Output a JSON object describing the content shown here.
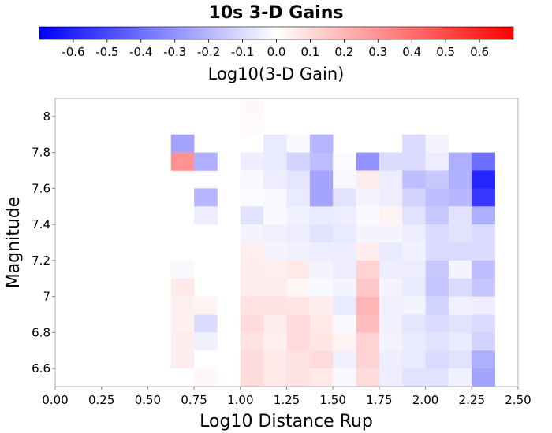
{
  "chart_data": {
    "type": "heatmap",
    "title": "10s 3-D Gains",
    "xlabel": "Log10 Distance Rup",
    "ylabel": "Magnitude",
    "xlim": [
      0.0,
      2.5
    ],
    "ylim": [
      6.5,
      8.1
    ],
    "xticks": [
      "0.00",
      "0.25",
      "0.50",
      "0.75",
      "1.00",
      "1.25",
      "1.50",
      "1.75",
      "2.00",
      "2.25",
      "2.50"
    ],
    "yticks": [
      "6.6",
      "6.8",
      "7",
      "7.2",
      "7.4",
      "7.6",
      "7.8",
      "8"
    ],
    "colorbar": {
      "label": "Log10(3-D Gain)",
      "min": -0.7,
      "max": 0.7,
      "ticks": [
        "-0.6",
        "-0.5",
        "-0.4",
        "-0.3",
        "-0.2",
        "-0.1",
        "0.0",
        "0.1",
        "0.2",
        "0.3",
        "0.4",
        "0.5",
        "0.6"
      ],
      "low_color": "#0000ff",
      "mid_color": "#ffffff",
      "high_color": "#ff0000"
    },
    "grid": false,
    "x_bins": [
      0.6875,
      0.8125,
      0.9375,
      1.0625,
      1.1875,
      1.3125,
      1.4375,
      1.5625,
      1.6875,
      1.8125,
      1.9375,
      2.0625,
      2.1875,
      2.3125
    ],
    "y_bins": [
      8.05,
      7.95,
      7.85,
      7.75,
      7.65,
      7.55,
      7.45,
      7.35,
      7.25,
      7.15,
      7.05,
      6.95,
      6.85,
      6.75,
      6.65,
      6.55
    ],
    "values": [
      [
        null,
        null,
        null,
        0.02,
        null,
        null,
        null,
        null,
        null,
        null,
        null,
        null,
        null,
        null
      ],
      [
        null,
        null,
        null,
        0.01,
        null,
        null,
        null,
        null,
        null,
        null,
        null,
        null,
        null,
        null
      ],
      [
        -0.25,
        null,
        null,
        0.0,
        -0.06,
        -0.02,
        -0.2,
        null,
        null,
        null,
        -0.1,
        -0.03,
        null,
        null
      ],
      [
        0.3,
        -0.22,
        null,
        -0.05,
        -0.06,
        -0.12,
        -0.18,
        -0.01,
        -0.3,
        -0.1,
        -0.1,
        -0.05,
        -0.22,
        -0.4
      ],
      [
        null,
        null,
        null,
        -0.02,
        -0.05,
        -0.07,
        -0.25,
        -0.02,
        0.05,
        -0.05,
        -0.18,
        -0.15,
        -0.22,
        -0.6
      ],
      [
        null,
        -0.2,
        null,
        -0.01,
        -0.02,
        -0.06,
        -0.25,
        -0.08,
        -0.03,
        -0.05,
        -0.12,
        -0.18,
        -0.2,
        -0.55
      ],
      [
        null,
        -0.05,
        null,
        -0.08,
        -0.02,
        -0.04,
        -0.06,
        -0.05,
        -0.02,
        0.03,
        -0.08,
        -0.15,
        -0.08,
        -0.22
      ],
      [
        null,
        null,
        null,
        -0.03,
        -0.04,
        -0.05,
        -0.08,
        -0.06,
        -0.03,
        -0.03,
        -0.05,
        -0.1,
        -0.08,
        -0.1
      ],
      [
        null,
        null,
        null,
        0.04,
        -0.03,
        -0.04,
        -0.05,
        -0.05,
        0.05,
        -0.06,
        -0.04,
        -0.1,
        -0.1,
        -0.1
      ],
      [
        -0.02,
        null,
        null,
        0.05,
        0.04,
        0.06,
        -0.03,
        -0.05,
        0.12,
        -0.05,
        -0.05,
        -0.15,
        -0.03,
        -0.18
      ],
      [
        0.06,
        null,
        null,
        0.05,
        0.05,
        0.02,
        -0.02,
        -0.03,
        0.15,
        -0.03,
        -0.06,
        -0.16,
        -0.1,
        -0.16
      ],
      [
        0.04,
        0.03,
        null,
        0.08,
        0.08,
        0.07,
        0.05,
        -0.06,
        0.2,
        -0.04,
        -0.03,
        -0.12,
        -0.04,
        -0.05
      ],
      [
        0.04,
        -0.1,
        null,
        0.1,
        0.05,
        0.1,
        0.06,
        -0.02,
        0.18,
        -0.04,
        -0.07,
        -0.1,
        -0.08,
        -0.1
      ],
      [
        0.05,
        -0.04,
        null,
        0.08,
        0.04,
        0.1,
        0.07,
        0.03,
        0.12,
        -0.03,
        -0.06,
        -0.08,
        -0.06,
        -0.12
      ],
      [
        0.05,
        0.0,
        null,
        0.1,
        0.06,
        0.08,
        0.1,
        -0.04,
        0.12,
        -0.05,
        -0.06,
        -0.1,
        -0.08,
        -0.22
      ],
      [
        null,
        0.02,
        null,
        0.1,
        0.06,
        0.08,
        0.06,
        -0.02,
        0.1,
        -0.05,
        -0.08,
        -0.08,
        -0.04,
        -0.25
      ]
    ]
  }
}
